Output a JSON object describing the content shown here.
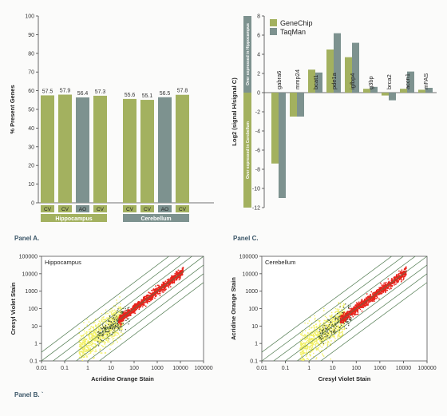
{
  "colors": {
    "green": "#a3b15f",
    "gray": "#7d928f",
    "red": "#e8231b",
    "yellow": "#f2f064",
    "diag": "#4f7a4f",
    "panel_label": "#3b5668"
  },
  "panel_labels": {
    "a": "Panel A.",
    "b": "Panel B. `",
    "c": "Panel C."
  },
  "chart_data": [
    {
      "type": "bar",
      "ylabel": "% Present Genes",
      "ylim": [
        0,
        100
      ],
      "yticks": [
        "0",
        "10",
        "20",
        "30",
        "40",
        "50",
        "60",
        "70",
        "80",
        "90",
        "100"
      ],
      "bars": [
        {
          "label": "CV",
          "value": 57.5,
          "value_text": "57.5",
          "group": "Hippocampus",
          "color": "green"
        },
        {
          "label": "CV",
          "value": 57.9,
          "value_text": "57.9",
          "group": "Hippocampus",
          "color": "green"
        },
        {
          "label": "AO",
          "value": 56.4,
          "value_text": "56.4",
          "group": "Hippocampus",
          "color": "gray"
        },
        {
          "label": "CV",
          "value": 57.3,
          "value_text": "57.3",
          "group": "Hippocampus",
          "color": "green"
        },
        {
          "label": "CV",
          "value": 55.6,
          "value_text": "55.6",
          "group": "Cerebellum",
          "color": "green"
        },
        {
          "label": "CV",
          "value": 55.1,
          "value_text": "55.1",
          "group": "Cerebellum",
          "color": "green"
        },
        {
          "label": "AO",
          "value": 56.5,
          "value_text": "56.5",
          "group": "Cerebellum",
          "color": "gray"
        },
        {
          "label": "CV",
          "value": 57.8,
          "value_text": "57.8",
          "group": "Cerebellum",
          "color": "green"
        }
      ],
      "groups": [
        {
          "name": "Hippocampus",
          "color": "green"
        },
        {
          "name": "Cerebellum",
          "color": "gray"
        }
      ]
    },
    {
      "type": "bar",
      "ylabel": "Log2 (signal H/signal C)",
      "ylim": [
        -12,
        8
      ],
      "yticks": [
        "-12",
        "-10",
        "-8",
        "-6",
        "-4",
        "-2",
        "0",
        "2",
        "4",
        "6",
        "8"
      ],
      "legend": [
        "GeneChip",
        "TaqMan"
      ],
      "legend_placement": "top-left",
      "side_labels": {
        "upper": "Over expressed in Hippocampus",
        "lower": "Over expressed in Cerebellum"
      },
      "categories": [
        "gabra6",
        "mmp24",
        "bcat1",
        "pde1a",
        "igfbp4",
        "g3bp",
        "brca2",
        "accn1",
        "mFAS"
      ],
      "series": [
        {
          "name": "GeneChip",
          "color": "green",
          "values": [
            -7.4,
            -2.5,
            2.4,
            4.5,
            3.7,
            0.4,
            -0.3,
            0.4,
            0.3
          ]
        },
        {
          "name": "TaqMan",
          "color": "gray",
          "values": [
            -11.0,
            -2.5,
            2.1,
            6.2,
            5.2,
            0.6,
            -0.8,
            2.2,
            0.5
          ]
        }
      ]
    },
    {
      "type": "scatter",
      "title": "Hippocampus",
      "xlabel": "Acridine Orange Stain",
      "ylabel": "Cresyl Violet Stain",
      "xscale": "log",
      "yscale": "log",
      "xlim": [
        0.01,
        100000
      ],
      "ylim": [
        0.1,
        100000
      ],
      "xticks": [
        "0.01",
        "0.1",
        "1",
        "10",
        "100",
        "1000",
        "10000",
        "100000"
      ],
      "yticks": [
        "0.1",
        "1",
        "10",
        "100",
        "1000",
        "10000",
        "100000"
      ],
      "diagonal_fold_lines": [
        -1.5,
        -1,
        -0.5,
        0,
        0.5,
        1,
        1.5
      ]
    },
    {
      "type": "scatter",
      "title": "Cerebellum",
      "xlabel": "Cresyl Violet Stain",
      "ylabel": "Acridine Orange Stain",
      "xscale": "log",
      "yscale": "log",
      "xlim": [
        0.01,
        100000
      ],
      "ylim": [
        0.1,
        100000
      ],
      "xticks": [
        "0.01",
        "0.1",
        "1",
        "10",
        "100",
        "1000",
        "10000",
        "100000"
      ],
      "yticks": [
        "0.1",
        "1",
        "10",
        "100",
        "1000",
        "10000",
        "100000"
      ],
      "diagonal_fold_lines": [
        -1.5,
        -1,
        -0.5,
        0,
        0.5,
        1,
        1.5
      ]
    }
  ]
}
